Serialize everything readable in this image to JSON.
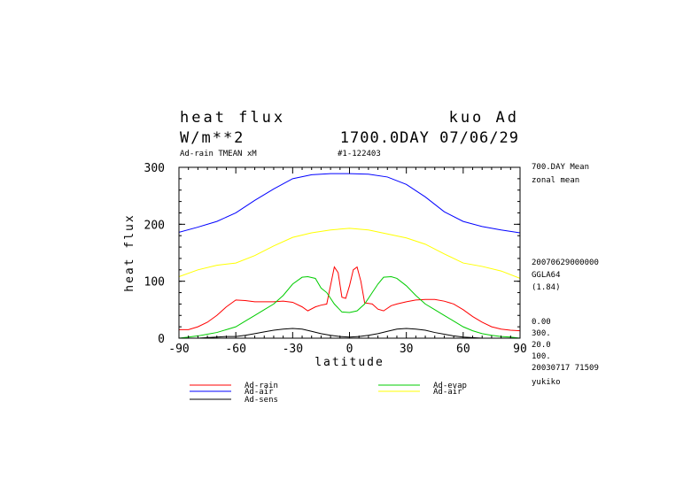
{
  "header": {
    "title": "heat flux",
    "experiment": "kuo Ad",
    "units": "W/m**2",
    "time": "1700.0DAY 07/06/29",
    "subtitle_left": "Ad-rain TMEAN xM",
    "subtitle_mid": "#1-122403"
  },
  "side_info": {
    "line1": "700.DAY Mean",
    "line2": "zonal mean",
    "line3": "20070629000000",
    "line4": "GGLA64",
    "line5": "(1.84)",
    "line6": "0.00",
    "line7": "300.",
    "line8": "20.0",
    "line9": "100.",
    "line10": "20030717  71509",
    "line11": "yukiko"
  },
  "chart_data": {
    "type": "line",
    "xlabel": "latitude",
    "ylabel": "heat flux",
    "xlim": [
      -90,
      90
    ],
    "ylim": [
      0,
      300
    ],
    "xticks": [
      -90,
      -60,
      -30,
      0,
      30,
      60,
      90
    ],
    "xtick_labels": [
      "-90",
      "-60",
      "-30",
      "0",
      "30",
      "60",
      "90"
    ],
    "yticks": [
      0,
      100,
      200,
      300
    ],
    "ytick_labels": [
      "0",
      "100",
      "200",
      "300"
    ],
    "grid": false,
    "legend_position": "bottom",
    "series": [
      {
        "name": "Ad-rain",
        "color": "#ff0000",
        "x": [
          -90,
          -85,
          -80,
          -75,
          -70,
          -65,
          -60,
          -55,
          -50,
          -45,
          -40,
          -35,
          -30,
          -25,
          -22,
          -18,
          -15,
          -12,
          -8,
          -6,
          -4,
          -2,
          0,
          2,
          4,
          6,
          8,
          12,
          15,
          18,
          22,
          25,
          30,
          35,
          40,
          45,
          50,
          55,
          60,
          65,
          70,
          75,
          80,
          85,
          90
        ],
        "y": [
          15,
          15,
          20,
          28,
          40,
          55,
          67,
          66,
          64,
          64,
          64,
          65,
          63,
          55,
          48,
          55,
          58,
          60,
          125,
          115,
          72,
          70,
          92,
          120,
          125,
          100,
          62,
          60,
          51,
          48,
          57,
          60,
          64,
          67,
          68,
          68,
          65,
          60,
          50,
          38,
          28,
          20,
          16,
          14,
          13
        ]
      },
      {
        "name": "Ad-evap",
        "color": "#00cc00",
        "x": [
          -90,
          -85,
          -80,
          -75,
          -70,
          -65,
          -60,
          -55,
          -50,
          -45,
          -40,
          -35,
          -30,
          -25,
          -22,
          -18,
          -15,
          -12,
          -8,
          -4,
          0,
          4,
          8,
          12,
          15,
          18,
          22,
          25,
          30,
          35,
          40,
          45,
          50,
          55,
          60,
          65,
          70,
          75,
          80,
          85,
          90
        ],
        "y": [
          0,
          2,
          4,
          7,
          10,
          15,
          20,
          30,
          40,
          50,
          60,
          75,
          95,
          107,
          108,
          105,
          88,
          80,
          60,
          46,
          45,
          48,
          60,
          80,
          95,
          107,
          108,
          105,
          92,
          75,
          60,
          50,
          40,
          30,
          20,
          13,
          8,
          5,
          3,
          2,
          0
        ]
      },
      {
        "name": "Ad-sens",
        "color": "#000000",
        "x": [
          -90,
          -85,
          -80,
          -75,
          -70,
          -65,
          -60,
          -55,
          -50,
          -45,
          -40,
          -35,
          -30,
          -25,
          -20,
          -15,
          -10,
          -5,
          0,
          5,
          10,
          15,
          20,
          25,
          30,
          35,
          40,
          45,
          50,
          55,
          60,
          65,
          70,
          75,
          80,
          85,
          90
        ],
        "y": [
          -3,
          -2,
          0,
          1,
          2,
          3,
          3,
          5,
          8,
          11,
          14,
          16,
          17,
          16,
          12,
          8,
          5,
          3,
          2,
          3,
          5,
          8,
          12,
          16,
          17,
          16,
          14,
          10,
          7,
          4,
          2,
          1,
          0,
          -1,
          -2,
          -3,
          -4
        ]
      },
      {
        "name": "Ad-air",
        "color": "#0000ff",
        "x": [
          -90,
          -80,
          -70,
          -60,
          -50,
          -40,
          -30,
          -20,
          -10,
          0,
          10,
          20,
          30,
          40,
          50,
          60,
          70,
          80,
          90
        ],
        "y": [
          186,
          195,
          205,
          220,
          242,
          262,
          280,
          287,
          289,
          289,
          288,
          283,
          270,
          248,
          222,
          205,
          196,
          190,
          185
        ]
      },
      {
        "name": "Ad-air",
        "color": "#ffff00",
        "x": [
          -90,
          -80,
          -70,
          -60,
          -50,
          -40,
          -30,
          -20,
          -10,
          0,
          10,
          20,
          30,
          40,
          50,
          60,
          70,
          80,
          90
        ],
        "y": [
          108,
          120,
          128,
          132,
          145,
          162,
          177,
          185,
          190,
          193,
          190,
          183,
          176,
          165,
          148,
          132,
          126,
          118,
          105
        ]
      }
    ]
  }
}
